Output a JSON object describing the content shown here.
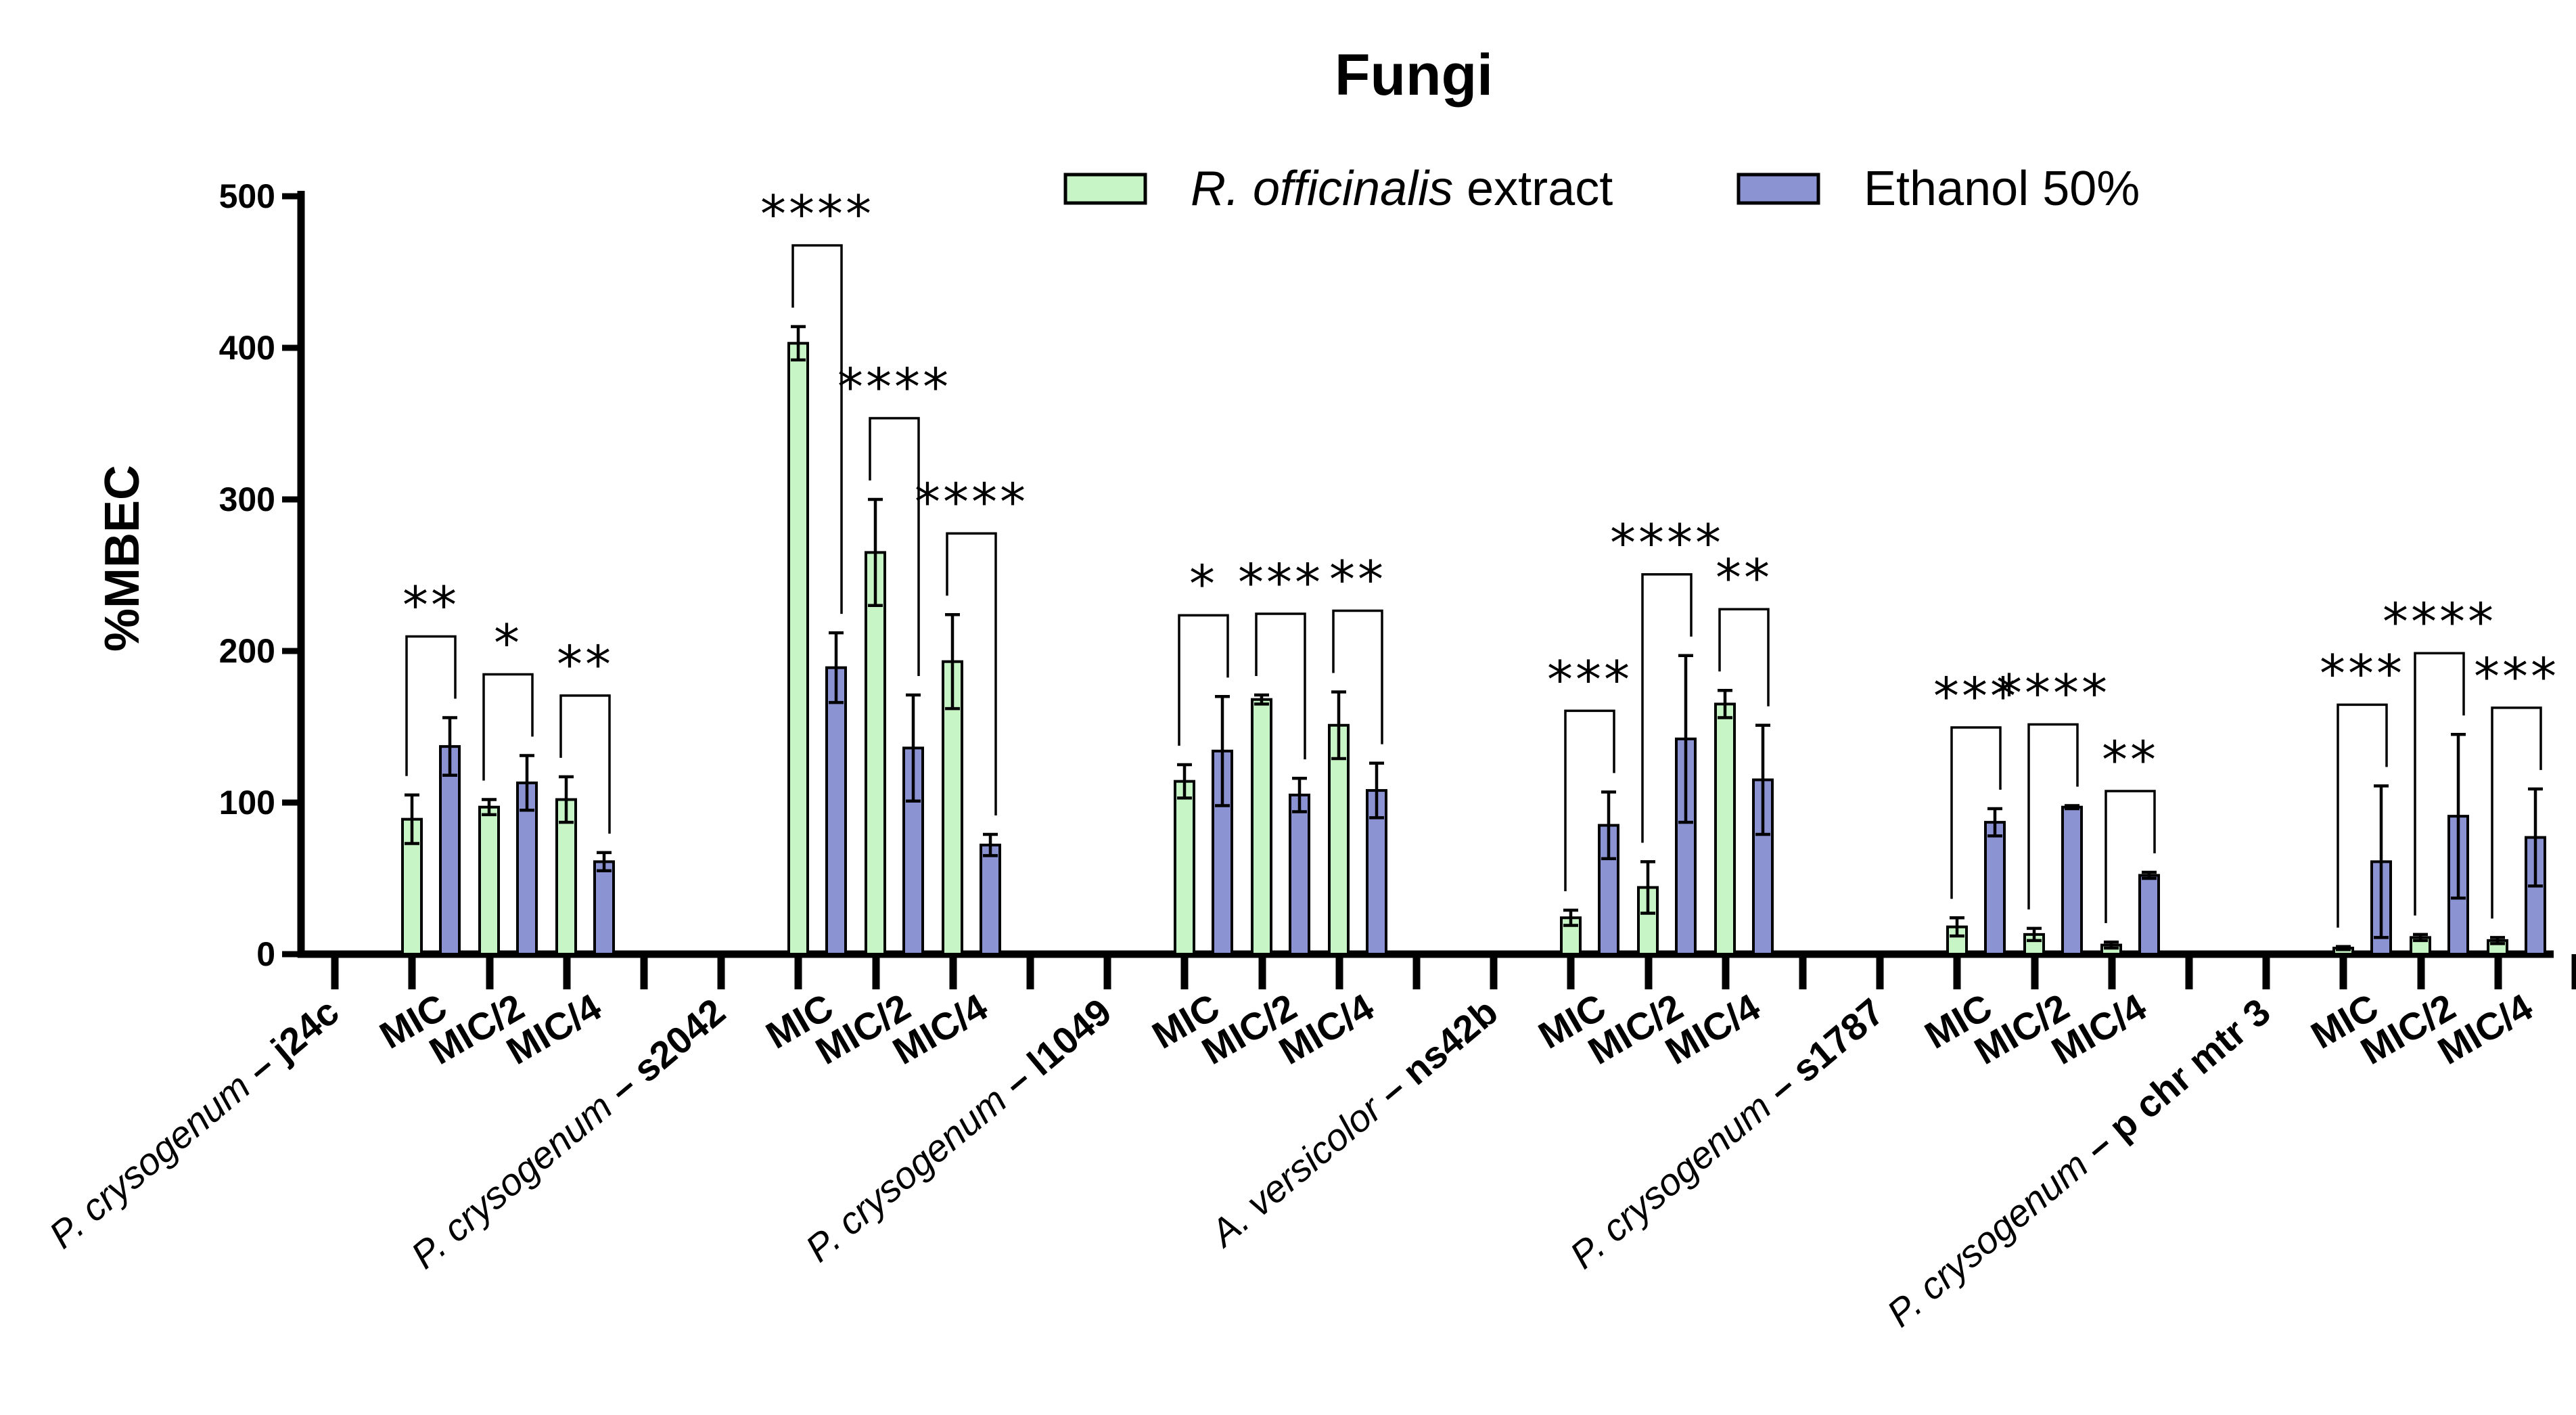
{
  "chart_data": {
    "type": "bar",
    "title": "Fungi",
    "ylabel": "%MBEC",
    "xlabel": "",
    "ylim": [
      0,
      500
    ],
    "yticks": [
      0,
      100,
      200,
      300,
      400,
      500
    ],
    "grid": false,
    "legend_position": "top-right",
    "colors": {
      "extract": "#c8f5c6",
      "ethanol": "#8c93d2",
      "axis": "#000000"
    },
    "series": [
      {
        "name_italic": "R. officinalis",
        "name_rest": " extract",
        "key": "extract"
      },
      {
        "name_italic": "",
        "name_rest": "Ethanol 50%",
        "key": "ethanol"
      }
    ],
    "groups": [
      {
        "strain_italic": "P. crysogenum",
        "strain_rest": " – j24c",
        "conditions": [
          {
            "label": "MIC",
            "extract": 89,
            "extract_err": 16,
            "ethanol": 137,
            "ethanol_err": 19,
            "sig": "**"
          },
          {
            "label": "MIC/2",
            "extract": 97,
            "extract_err": 5,
            "ethanol": 113,
            "ethanol_err": 18,
            "sig": "*"
          },
          {
            "label": "MIC/4",
            "extract": 102,
            "extract_err": 15,
            "ethanol": 61,
            "ethanol_err": 6,
            "sig": "**"
          }
        ]
      },
      {
        "strain_italic": "P. crysogenum",
        "strain_rest": " – s2042",
        "conditions": [
          {
            "label": "MIC",
            "extract": 403,
            "extract_err": 11,
            "ethanol": 189,
            "ethanol_err": 23,
            "sig": "****"
          },
          {
            "label": "MIC/2",
            "extract": 265,
            "extract_err": 35,
            "ethanol": 136,
            "ethanol_err": 35,
            "sig": "****"
          },
          {
            "label": "MIC/4",
            "extract": 193,
            "extract_err": 31,
            "ethanol": 72,
            "ethanol_err": 7,
            "sig": "****"
          }
        ]
      },
      {
        "strain_italic": "P. crysogenum",
        "strain_rest": " – l1049",
        "conditions": [
          {
            "label": "MIC",
            "extract": 114,
            "extract_err": 11,
            "ethanol": 134,
            "ethanol_err": 36,
            "sig": "*"
          },
          {
            "label": "MIC/2",
            "extract": 168,
            "extract_err": 3,
            "ethanol": 105,
            "ethanol_err": 11,
            "sig": "***"
          },
          {
            "label": "MIC/4",
            "extract": 151,
            "extract_err": 22,
            "ethanol": 108,
            "ethanol_err": 18,
            "sig": "**"
          }
        ]
      },
      {
        "strain_italic": "A. versicolor",
        "strain_rest": " – ns42b",
        "conditions": [
          {
            "label": "MIC",
            "extract": 24,
            "extract_err": 5,
            "ethanol": 85,
            "ethanol_err": 22,
            "sig": "***"
          },
          {
            "label": "MIC/2",
            "extract": 44,
            "extract_err": 17,
            "ethanol": 142,
            "ethanol_err": 55,
            "sig": "****"
          },
          {
            "label": "MIC/4",
            "extract": 165,
            "extract_err": 9,
            "ethanol": 115,
            "ethanol_err": 36,
            "sig": "**"
          }
        ]
      },
      {
        "strain_italic": "P. crysogenum",
        "strain_rest": " – s1787",
        "conditions": [
          {
            "label": "MIC",
            "extract": 18,
            "extract_err": 6,
            "ethanol": 87,
            "ethanol_err": 9,
            "sig": "***"
          },
          {
            "label": "MIC/2",
            "extract": 13,
            "extract_err": 4,
            "ethanol": 97,
            "ethanol_err": 1,
            "sig": "****"
          },
          {
            "label": "MIC/4",
            "extract": 6,
            "extract_err": 2,
            "ethanol": 52,
            "ethanol_err": 2,
            "sig": "**"
          }
        ]
      },
      {
        "strain_italic": "P. crysogenum",
        "strain_rest": " – p chr mtr 3",
        "conditions": [
          {
            "label": "MIC",
            "extract": 4,
            "extract_err": 1,
            "ethanol": 61,
            "ethanol_err": 50,
            "sig": "***"
          },
          {
            "label": "MIC/2",
            "extract": 11,
            "extract_err": 2,
            "ethanol": 91,
            "ethanol_err": 54,
            "sig": "****"
          },
          {
            "label": "MIC/4",
            "extract": 9,
            "extract_err": 2,
            "ethanol": 77,
            "ethanol_err": 32,
            "sig": "***"
          }
        ]
      }
    ]
  }
}
